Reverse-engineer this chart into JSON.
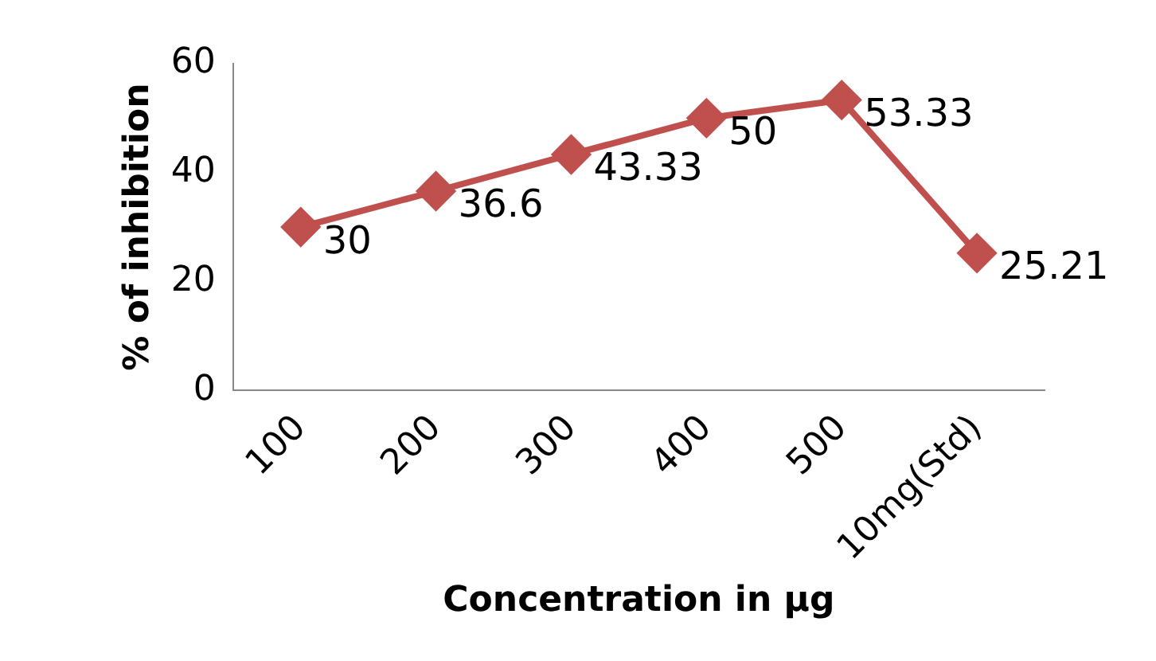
{
  "chart_data": {
    "type": "line",
    "xlabel": "Concentration in µg",
    "ylabel": "% of inhibition",
    "categories": [
      "100",
      "200",
      "300",
      "400",
      "500",
      "10mg(Std)"
    ],
    "series": [
      {
        "color": "#c0504d",
        "values": [
          30,
          36.6,
          43.33,
          50,
          53.33,
          25.21
        ]
      }
    ],
    "ylim": [
      0,
      60
    ],
    "yticks": [
      0,
      20,
      40,
      60
    ],
    "grid": false,
    "legend": false,
    "marker": "diamond",
    "line_style": "solid",
    "data_labels": true
  }
}
